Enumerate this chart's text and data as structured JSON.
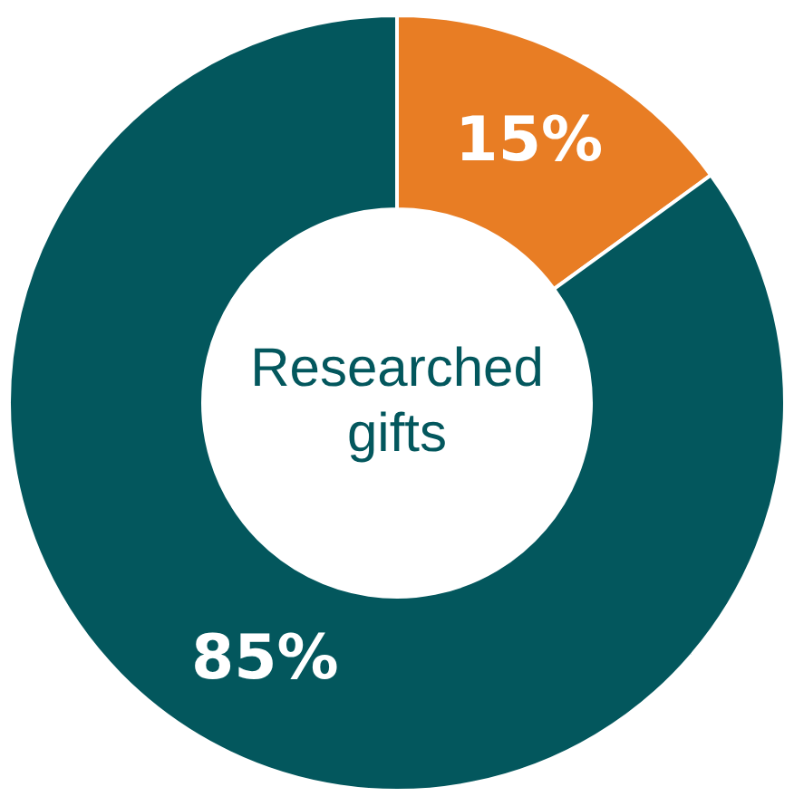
{
  "chart_data": {
    "type": "donut",
    "title": "Researched gifts",
    "categories": [
      null,
      null
    ],
    "values": [
      15,
      85
    ],
    "colors": [
      "#e87d24",
      "#03575d"
    ],
    "value_labels": [
      "15%",
      "85%"
    ],
    "legend": false
  }
}
